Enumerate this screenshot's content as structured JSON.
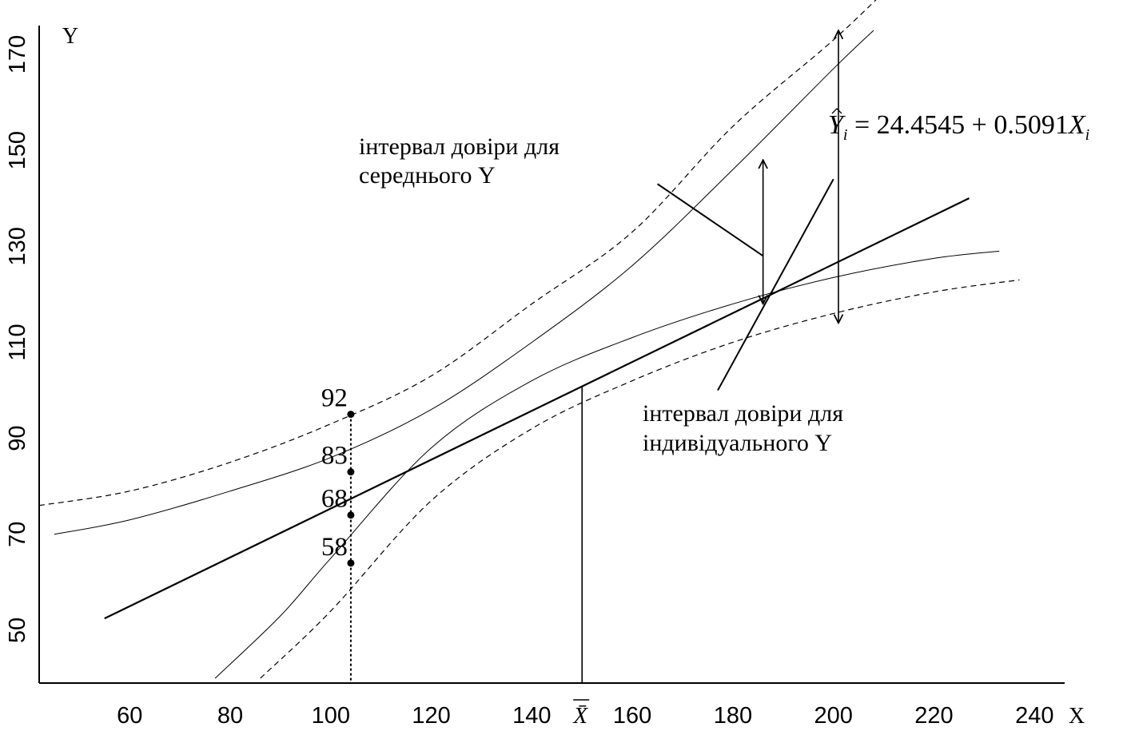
{
  "chart_data": {
    "type": "line",
    "x_axis_name": "X",
    "y_axis_name": "Y",
    "x_ticks": [
      60,
      80,
      100,
      120,
      140,
      160,
      180,
      200,
      220,
      240
    ],
    "y_ticks": [
      50,
      70,
      90,
      110,
      130,
      150,
      170
    ],
    "xlim": [
      42,
      246
    ],
    "ylim": [
      39,
      176
    ],
    "mean_x_label": "X̄",
    "mean_x": 150,
    "equation": {
      "lhs_base": "Y",
      "lhs_sub": "i",
      "mid": " = 24.4545 + 0.5091",
      "rhs_base": "X",
      "rhs_sub": "i"
    },
    "intercept": 24.4545,
    "slope": 0.5091,
    "regression_line_x": [
      55,
      227
    ],
    "series": [
      {
        "role": "mean-ci-upper",
        "style": "thin",
        "points": [
          [
            45,
            70
          ],
          [
            60,
            73
          ],
          [
            80,
            79
          ],
          [
            100,
            86
          ],
          [
            120,
            96
          ],
          [
            140,
            110
          ],
          [
            160,
            126
          ],
          [
            180,
            146
          ],
          [
            200,
            167
          ],
          [
            208,
            175
          ]
        ]
      },
      {
        "role": "mean-ci-lower",
        "style": "thin",
        "points": [
          [
            77,
            40
          ],
          [
            90,
            53
          ],
          [
            100,
            65
          ],
          [
            120,
            88
          ],
          [
            140,
            102
          ],
          [
            160,
            111
          ],
          [
            180,
            118
          ],
          [
            200,
            123.5
          ],
          [
            220,
            127.5
          ],
          [
            233,
            129
          ]
        ]
      },
      {
        "role": "individual-pi-upper",
        "style": "dashed",
        "points": [
          [
            42,
            76
          ],
          [
            60,
            79
          ],
          [
            80,
            85
          ],
          [
            100,
            93
          ],
          [
            120,
            103
          ],
          [
            140,
            118
          ],
          [
            160,
            133
          ],
          [
            180,
            155
          ],
          [
            200,
            173
          ],
          [
            213,
            186
          ]
        ]
      },
      {
        "role": "individual-pi-lower",
        "style": "dashed",
        "points": [
          [
            86,
            40
          ],
          [
            100,
            54
          ],
          [
            120,
            77
          ],
          [
            140,
            92
          ],
          [
            160,
            102
          ],
          [
            180,
            110
          ],
          [
            200,
            116
          ],
          [
            220,
            120.5
          ],
          [
            237,
            123
          ]
        ]
      }
    ],
    "point_x": 104,
    "points": [
      {
        "label": "92",
        "y": 95
      },
      {
        "label": "83",
        "y": 83
      },
      {
        "label": "68",
        "y": 74
      },
      {
        "label": "58",
        "y": 64
      }
    ],
    "annotations": [
      {
        "lines": [
          "інтервал довіри для",
          "середнього  Y"
        ]
      },
      {
        "lines": [
          "інтервал довіри для",
          "індивідуального Y"
        ]
      }
    ],
    "mean_ci_arrow": {
      "x": 186,
      "y_top": 148,
      "y_bottom": 118
    },
    "individual_pi_arrow": {
      "x": 201,
      "y_top": 175,
      "y_bottom": 114
    },
    "mean_ci_pointer": {
      "from": [
        165,
        143
      ],
      "to": [
        186,
        128
      ]
    },
    "individual_pi_pointer": {
      "from": [
        177,
        100
      ],
      "to": [
        200,
        144
      ]
    }
  }
}
